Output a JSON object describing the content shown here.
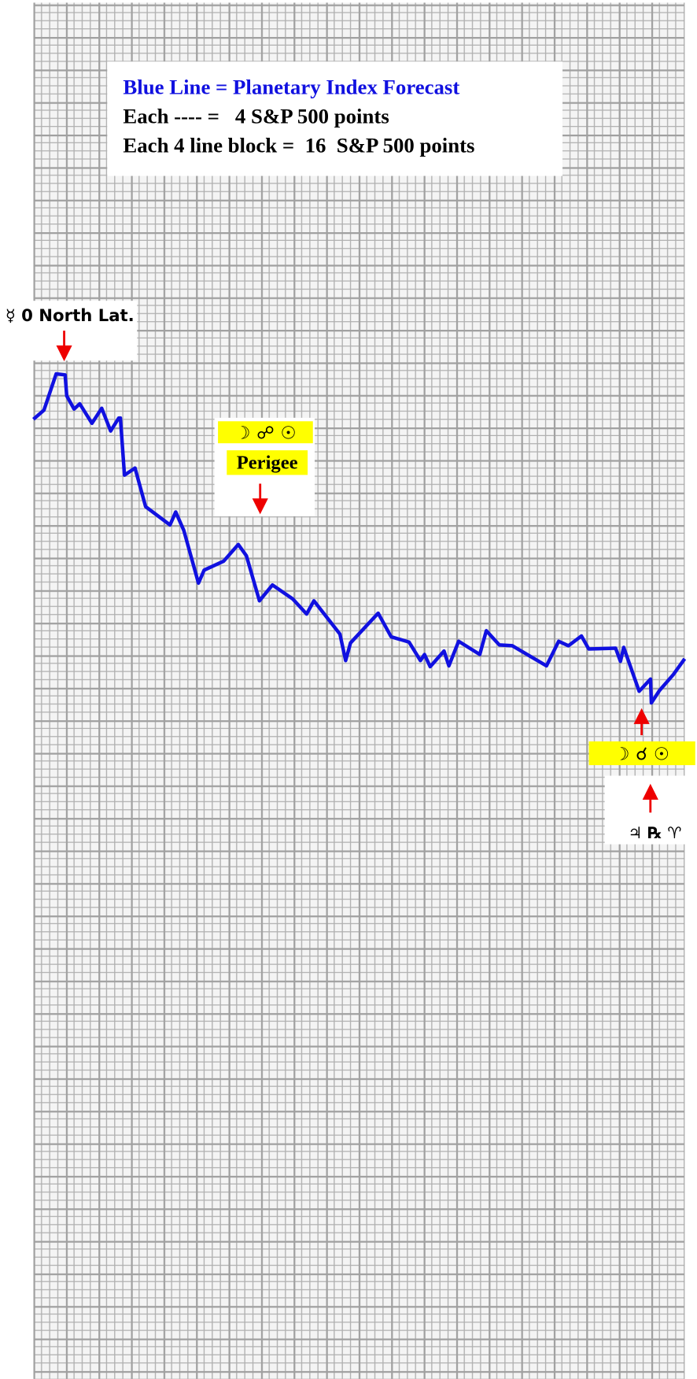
{
  "chart_data": {
    "type": "line",
    "legend_lines": [
      "Each ---- =   4 S&P 500 points",
      "Each 4 line block =  16  S&P 500 points"
    ],
    "annotations": [
      "☿ 0 North Lat.",
      "☽ ☍ ☉",
      "Perigee",
      "☽ ☌ ☉",
      "♃ ℞ ♈"
    ],
    "x": [
      0,
      1.3,
      2.8,
      3.9,
      4.1,
      5,
      5.7,
      7.2,
      8.4,
      9.5,
      10.5,
      10.7,
      11.2,
      12.5,
      13.8,
      16.8,
      17.5,
      18.5,
      20.3,
      21,
      23.4,
      25.2,
      26.2,
      27.8,
      29.4,
      31.9,
      33.6,
      34.5,
      37.7,
      38.4,
      39,
      42.4,
      44,
      46.2,
      47.6,
      48.1,
      48.8,
      50.5,
      51.1,
      52.3,
      54.9,
      55.7,
      57.3,
      58.9,
      63.1,
      64.6,
      65.8,
      67.4,
      68.3,
      71.6,
      72.2,
      72.6,
      74.5,
      75.9,
      76,
      77,
      78.7,
      80.1
    ],
    "series": [
      {
        "name": "Blue Line = Planetary Index Forecast",
        "color": "#1010e0",
        "values": [
          472,
          476.5,
          494.3,
          493.8,
          483.5,
          477,
          479.6,
          470,
          477.4,
          466.2,
          472.6,
          472.6,
          444.5,
          448,
          429,
          420,
          426.4,
          417.3,
          391.4,
          397.8,
          402.2,
          410.4,
          404.8,
          382.7,
          390.5,
          383.6,
          376.2,
          382.7,
          366.3,
          353.3,
          362,
          376.6,
          365,
          362.4,
          353.3,
          356.3,
          350.3,
          358,
          350.7,
          362.8,
          356.3,
          368,
          361,
          360.6,
          350.7,
          362.8,
          360.6,
          365.4,
          359,
          359.4,
          352.9,
          359.8,
          338.2,
          344.2,
          332.5,
          338.6,
          346.4,
          354.2
        ]
      }
    ],
    "xlim": [
      0,
      80.1
    ],
    "ylim": [
      0,
      676
    ]
  }
}
